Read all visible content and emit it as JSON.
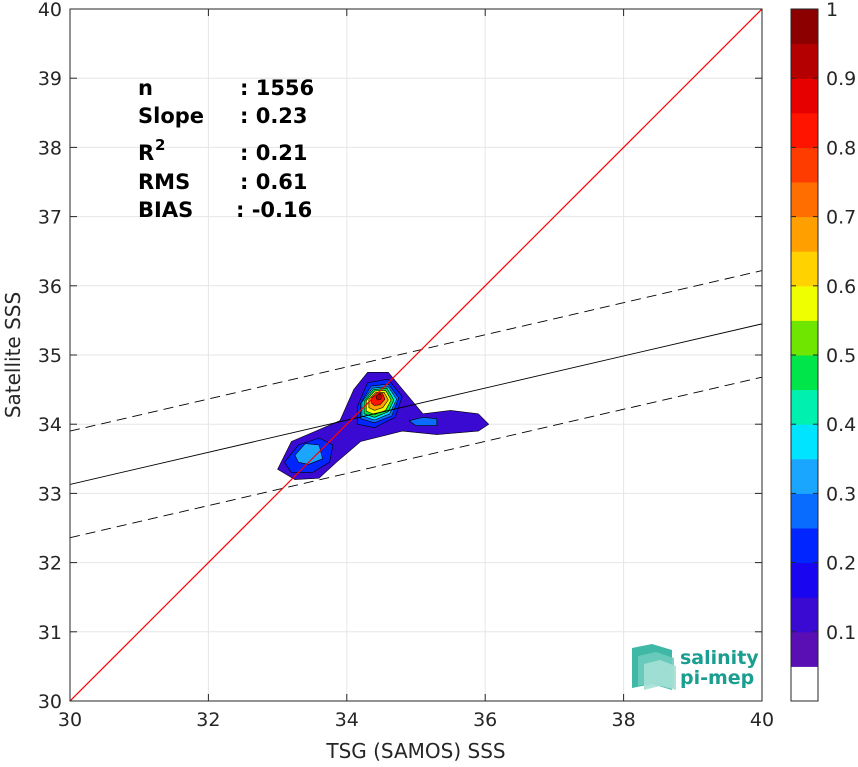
{
  "chart_data": {
    "type": "heatmap",
    "subtype": "density-contour-scatter",
    "xlabel": "TSG (SAMOS) SSS",
    "ylabel": "Satellite SSS",
    "xlim": [
      30,
      40
    ],
    "ylim": [
      30,
      40
    ],
    "x_ticks": [
      30,
      32,
      34,
      36,
      38,
      40
    ],
    "y_ticks": [
      30,
      31,
      32,
      33,
      34,
      35,
      36,
      37,
      38,
      39,
      40
    ],
    "grid": true,
    "stats": [
      {
        "label": "n",
        "value": ": 1556"
      },
      {
        "label": "Slope",
        "value": ": 0.23"
      },
      {
        "label": "R",
        "superscript": "2",
        "value": ": 0.21"
      },
      {
        "label": "RMS",
        "value": ": 0.61"
      },
      {
        "label": "BIAS",
        "value": ": -0.16"
      }
    ],
    "lines": {
      "identity": {
        "color": "#ff0000",
        "from": [
          30,
          30
        ],
        "to": [
          40,
          40
        ]
      },
      "regression": {
        "color": "#000000",
        "style": "solid",
        "from": [
          30,
          33.13
        ],
        "to": [
          40,
          35.45
        ]
      },
      "upper_bound": {
        "color": "#000000",
        "style": "dashed",
        "from": [
          30,
          33.9
        ],
        "to": [
          40,
          36.22
        ]
      },
      "lower_bound": {
        "color": "#000000",
        "style": "dashed",
        "from": [
          30,
          32.36
        ],
        "to": [
          40,
          34.68
        ]
      }
    },
    "density_peak": {
      "x": 34.45,
      "y": 34.4
    },
    "colorbar": {
      "range": [
        0,
        1
      ],
      "tick_values": [
        0.1,
        0.2,
        0.3,
        0.4,
        0.5,
        0.6,
        0.7,
        0.8,
        0.9,
        1
      ],
      "tick_labels": [
        "0.1",
        "0.2",
        "0.3",
        "0.4",
        "0.5",
        "0.6",
        "0.7",
        "0.8",
        "0.9",
        "1"
      ],
      "colors": [
        "#ffffff",
        "#5a0fb4",
        "#3a0ad2",
        "#1a05f0",
        "#0025ff",
        "#0a6cff",
        "#1aa6ff",
        "#00e4ff",
        "#00f0b0",
        "#00e64a",
        "#6ee600",
        "#f0ff00",
        "#ffd200",
        "#ffa000",
        "#ff6e00",
        "#ff3c00",
        "#ff1400",
        "#e60000",
        "#b40000",
        "#8c0000"
      ]
    }
  },
  "logo": {
    "line1": "salinity",
    "line2": "pi-mep",
    "color": "#1a9e8f"
  }
}
